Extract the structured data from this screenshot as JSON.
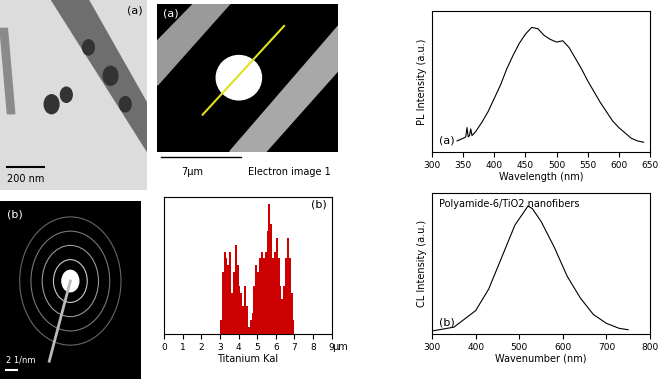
{
  "images": [
    {
      "label": "(a)",
      "scale_bar": "200 nm"
    },
    {
      "label": "(a)",
      "scale_bar": "7μm",
      "caption": "Electron image 1"
    },
    {
      "label": "(b)",
      "scale_bar": "2 1/nm"
    }
  ],
  "chart_data": [
    {
      "type": "bar",
      "xlabel": "Titanium Kal",
      "annotations": [
        "(b)",
        "μm"
      ],
      "x": [
        3.0,
        3.1,
        3.2,
        3.3,
        3.4,
        3.5,
        3.6,
        3.7,
        3.8,
        3.9,
        4.0,
        4.1,
        4.2,
        4.3,
        4.4,
        4.5,
        4.6,
        4.7,
        4.8,
        4.9,
        5.0,
        5.1,
        5.2,
        5.3,
        5.4,
        5.5,
        5.6,
        5.7,
        5.8,
        5.9,
        6.0,
        6.1,
        6.2,
        6.3,
        6.4,
        6.5,
        6.6,
        6.7,
        6.8,
        6.9
      ],
      "values": [
        0.1,
        0.45,
        0.6,
        0.55,
        0.5,
        0.6,
        0.3,
        0.45,
        0.65,
        0.5,
        0.35,
        0.3,
        0.2,
        0.35,
        0.2,
        0.05,
        0.1,
        0.15,
        0.35,
        0.5,
        0.45,
        0.55,
        0.6,
        0.55,
        0.6,
        0.75,
        0.95,
        0.8,
        0.55,
        0.6,
        0.7,
        0.55,
        0.35,
        0.25,
        0.35,
        0.55,
        0.7,
        0.55,
        0.3,
        0.1
      ],
      "color": "#cc0000",
      "xlim": [
        0,
        9
      ],
      "xticks": [
        0,
        1,
        2,
        3,
        4,
        5,
        6,
        7,
        8,
        9
      ],
      "ylim": [
        0,
        1
      ],
      "tick_labels": "x"
    },
    {
      "type": "line",
      "xlabel": "Wavelength (nm)",
      "ylabel": "PL Intensity (a.u.)",
      "annotations": [
        "(a)"
      ],
      "x": [
        340,
        350,
        354,
        356,
        358,
        360,
        362,
        364,
        370,
        380,
        390,
        400,
        410,
        420,
        430,
        440,
        450,
        460,
        470,
        480,
        490,
        500,
        510,
        520,
        530,
        540,
        550,
        560,
        570,
        580,
        590,
        600,
        610,
        620,
        630,
        640
      ],
      "values": [
        0.08,
        0.1,
        0.11,
        0.18,
        0.11,
        0.12,
        0.17,
        0.12,
        0.15,
        0.22,
        0.3,
        0.4,
        0.5,
        0.62,
        0.72,
        0.81,
        0.88,
        0.93,
        0.92,
        0.87,
        0.84,
        0.82,
        0.83,
        0.78,
        0.7,
        0.62,
        0.53,
        0.45,
        0.37,
        0.3,
        0.23,
        0.18,
        0.14,
        0.1,
        0.08,
        0.07
      ],
      "color": "#000000",
      "xlim": [
        300,
        650
      ],
      "xticks": [
        300,
        350,
        400,
        450,
        500,
        550,
        600,
        650
      ],
      "ylim": [
        0,
        1.05
      ],
      "tick_labels": "x"
    },
    {
      "type": "line",
      "xlabel": "Wavenumber (nm)",
      "ylabel": "CL Intensity (a.u.)",
      "annotations": [
        "Polyamide-6/TiO2 nanofibers",
        "(b)"
      ],
      "x": [
        300,
        350,
        400,
        430,
        460,
        490,
        510,
        520,
        530,
        550,
        580,
        610,
        640,
        670,
        700,
        730,
        750
      ],
      "values": [
        0.02,
        0.05,
        0.18,
        0.35,
        0.6,
        0.85,
        0.95,
        1.0,
        0.98,
        0.88,
        0.68,
        0.45,
        0.28,
        0.15,
        0.08,
        0.04,
        0.03
      ],
      "color": "#000000",
      "xlim": [
        300,
        800
      ],
      "xticks": [
        300,
        400,
        500,
        600,
        700,
        800
      ],
      "ylim": [
        0,
        1.1
      ],
      "tick_labels": "x"
    }
  ]
}
